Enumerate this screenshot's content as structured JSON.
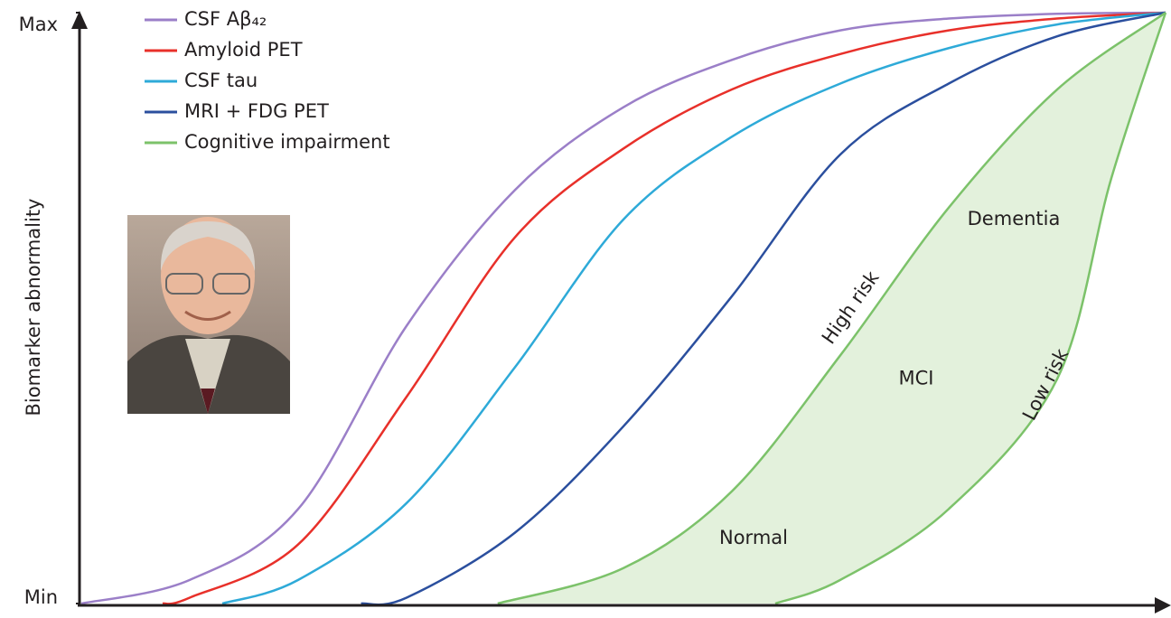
{
  "chart_data": {
    "type": "line",
    "ylabel": "Biomarker abnormality",
    "xlim": [
      0,
      100
    ],
    "ylim": [
      0,
      100
    ],
    "yticks": [
      {
        "value": 0,
        "label": "Min"
      },
      {
        "value": 100,
        "label": "Max"
      }
    ],
    "series": [
      {
        "name": "CSF Aβ₄₂",
        "color": "#9b7fc8",
        "x": [
          0,
          10,
          20,
          30,
          40,
          50,
          60,
          70,
          80,
          90,
          100
        ],
        "values": [
          0,
          4,
          16,
          47,
          70,
          84,
          92,
          97,
          99,
          99.8,
          100
        ]
      },
      {
        "name": "Amyloid PET",
        "color": "#e8302a",
        "x": [
          7.5,
          10,
          20,
          30,
          40,
          50,
          60,
          70,
          80,
          90,
          100
        ],
        "values": [
          0,
          1,
          10,
          35,
          62,
          77,
          87,
          93,
          97,
          99,
          100
        ]
      },
      {
        "name": "CSF tau",
        "color": "#2eaad8",
        "x": [
          13,
          20,
          30,
          40,
          50,
          60,
          70,
          80,
          90,
          100
        ],
        "values": [
          0,
          4,
          17,
          40,
          65,
          79,
          88,
          94,
          98,
          100
        ]
      },
      {
        "name": "MRI + FDG PET",
        "color": "#2b4f9e",
        "x": [
          25.8,
          30,
          40,
          50,
          60,
          70,
          80,
          90,
          100
        ],
        "values": [
          0,
          1,
          12,
          30,
          52,
          76,
          88,
          96,
          100
        ]
      },
      {
        "name": "Cognitive impairment",
        "color": "#7cc26a",
        "x": [
          38.4,
          50,
          60,
          70,
          80,
          90,
          100
        ],
        "values": [
          0,
          6,
          19,
          42,
          67,
          87,
          100
        ]
      },
      {
        "color": "#7cc26a",
        "x": [
          64,
          70,
          80,
          90,
          95,
          100
        ],
        "values": [
          0,
          4,
          16,
          38,
          72,
          100
        ]
      }
    ],
    "fill_between": {
      "series": [
        4,
        5
      ],
      "color": "#e3f1dc"
    },
    "annotations": [
      {
        "text": "High risk",
        "x": 71,
        "y": 50
      },
      {
        "text": "Low risk",
        "x": 89,
        "y": 37
      },
      {
        "text": "Normal",
        "x": 62,
        "y": 11
      },
      {
        "text": "MCI",
        "x": 77,
        "y": 38
      },
      {
        "text": "Dementia",
        "x": 86,
        "y": 65
      }
    ]
  }
}
